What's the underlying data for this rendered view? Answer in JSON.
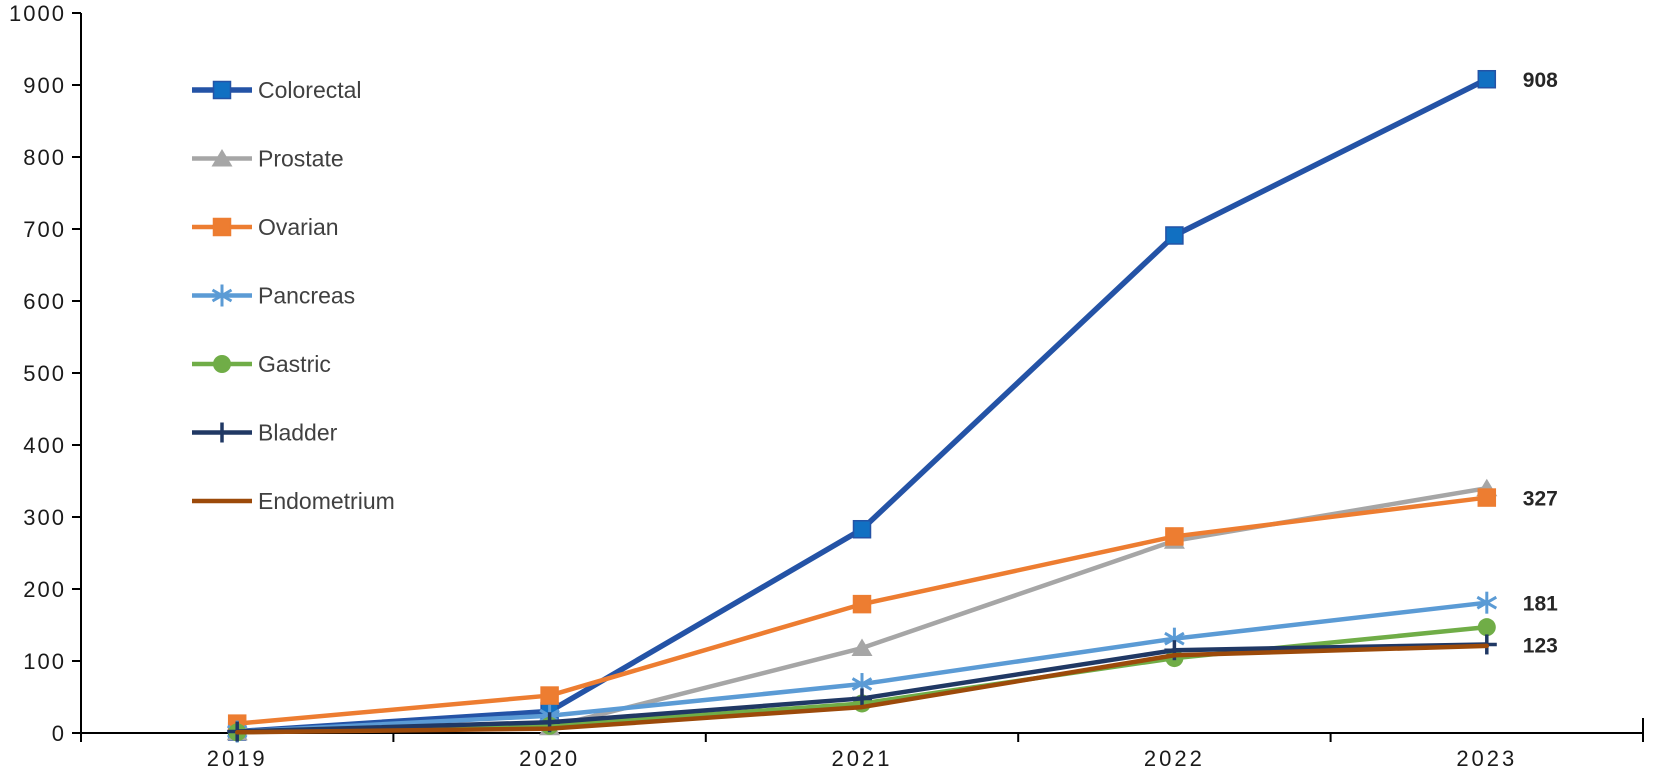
{
  "chart_data": {
    "type": "line",
    "title": "",
    "xlabel": "",
    "ylabel": "",
    "x_categories": [
      "2019",
      "2020",
      "2021",
      "2022",
      "2023"
    ],
    "ylim": [
      0,
      1000
    ],
    "ytick_step": 100,
    "grid": false,
    "legend_position": "inside-top-left",
    "axis_color": "#000000",
    "tick_label_color": "#1a1a1a",
    "legend_text_color": "#404040",
    "data_label_color": "#262626",
    "series": [
      {
        "name": "Colorectal",
        "color": "#2453A6",
        "marker": "square",
        "marker_fill": "#1170C2",
        "line_width": 5.5,
        "values": [
          2,
          30,
          283,
          691,
          908
        ]
      },
      {
        "name": "Prostate",
        "color": "#A6A6A6",
        "marker": "triangle",
        "marker_fill": "#A6A6A6",
        "line_width": 4.5,
        "values": [
          1,
          8,
          118,
          267,
          340
        ]
      },
      {
        "name": "Ovarian",
        "color": "#ED7D31",
        "marker": "square",
        "marker_fill": "#ED7D31",
        "line_width": 4.5,
        "values": [
          13,
          52,
          179,
          273,
          327
        ]
      },
      {
        "name": "Pancreas",
        "color": "#5B9BD5",
        "marker": "asterisk",
        "marker_fill": "#5B9BD5",
        "line_width": 4.5,
        "values": [
          2,
          24,
          68,
          131,
          181
        ]
      },
      {
        "name": "Gastric",
        "color": "#70AD47",
        "marker": "circle",
        "marker_fill": "#70AD47",
        "line_width": 4.5,
        "values": [
          1,
          10,
          41,
          104,
          147
        ]
      },
      {
        "name": "Bladder",
        "color": "#203864",
        "marker": "plus",
        "marker_fill": "#203864",
        "line_width": 4.5,
        "values": [
          2,
          15,
          48,
          115,
          123
        ]
      },
      {
        "name": "Endometrium",
        "color": "#9C4A0A",
        "marker": "none",
        "marker_fill": "#9C4A0A",
        "line_width": 4.5,
        "values": [
          1,
          6,
          36,
          108,
          121
        ]
      }
    ],
    "end_labels": [
      {
        "series": "Colorectal",
        "text": "908"
      },
      {
        "series": "Ovarian",
        "text": "327"
      },
      {
        "series": "Pancreas",
        "text": "181"
      },
      {
        "series": "Bladder",
        "text": "123"
      }
    ]
  }
}
